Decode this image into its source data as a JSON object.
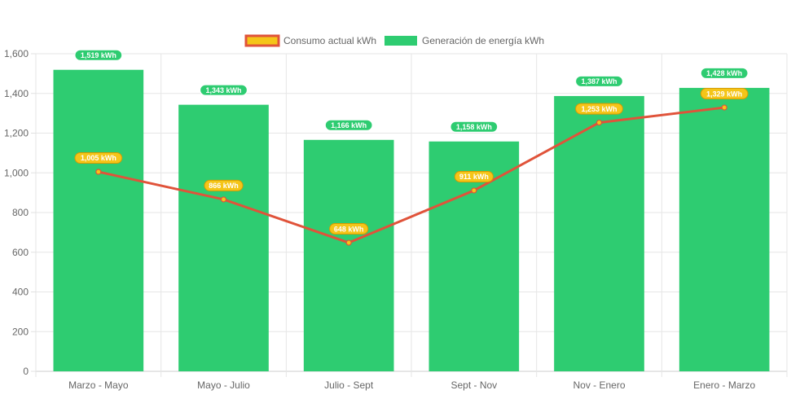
{
  "chart_data": {
    "type": "bar",
    "title": "",
    "xlabel": "",
    "ylabel": "",
    "categories": [
      "Marzo - Mayo",
      "Mayo - Julio",
      "Julio - Sept",
      "Sept - Nov",
      "Nov - Enero",
      "Enero - Marzo"
    ],
    "ylim": [
      0,
      1600
    ],
    "yticks": [
      0,
      200,
      400,
      600,
      800,
      1000,
      1200,
      1400,
      1600
    ],
    "ytick_labels": [
      "0",
      "200",
      "400",
      "600",
      "800",
      "1,000",
      "1,200",
      "1,400",
      "1,600"
    ],
    "grid": true,
    "legend_position": "top-center",
    "series": [
      {
        "name": "Consumo actual kWh",
        "type": "line",
        "values": [
          1005,
          866,
          648,
          911,
          1253,
          1329
        ],
        "labels": [
          "1,005 kWh",
          "866 kWh",
          "648 kWh",
          "911 kWh",
          "1,253 kWh",
          "1,329 kWh"
        ],
        "color": "#e0533a",
        "fill": "#f5c518"
      },
      {
        "name": "Generación de energía kWh",
        "type": "bar",
        "values": [
          1519,
          1343,
          1166,
          1158,
          1387,
          1428
        ],
        "labels": [
          "1,519 kWh",
          "1,343 kWh",
          "1,166 kWh",
          "1,158 kWh",
          "1,387 kWh",
          "1,428 kWh"
        ],
        "color": "#2ecc71"
      }
    ]
  }
}
